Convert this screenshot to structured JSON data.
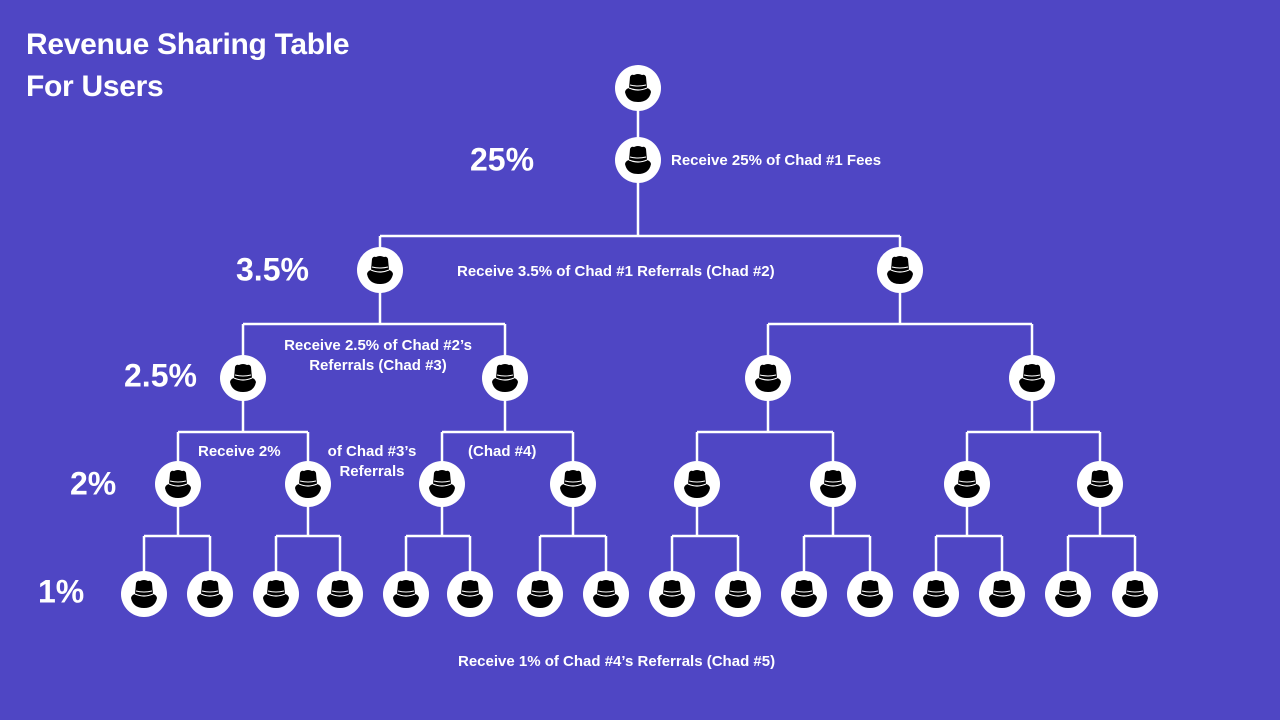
{
  "title_line1": "Revenue Sharing Table",
  "title_line2": "For Users",
  "colors": {
    "background": "#4f46c4",
    "line": "#ffffff",
    "node_fill": "#ffffff",
    "icon": "#000000"
  },
  "levels": [
    {
      "percent": "25%",
      "note": "Receive 25% of Chad #1 Fees"
    },
    {
      "percent": "3.5%",
      "note": "Receive 3.5% of Chad #1 Referrals (Chad #2)"
    },
    {
      "percent": "2.5%",
      "note_line1": "Receive 2.5% of Chad #2’s",
      "note_line2": "Referrals (Chad #3)"
    },
    {
      "percent": "2%",
      "note_part1": "Receive 2%",
      "note_part2_line1": "of Chad #3’s",
      "note_part2_line2": "Referrals",
      "note_part3": "(Chad #4)"
    },
    {
      "percent": "1%",
      "note": "Receive 1% of Chad #4’s Referrals (Chad #5)"
    }
  ],
  "node_icon": "hat-person-icon",
  "tree": {
    "root": [
      638,
      88
    ],
    "level0": [
      638,
      160
    ],
    "level1": [
      380,
      900
    ],
    "level2": [
      243,
      505,
      768,
      1032
    ],
    "level3": [
      178,
      308,
      442,
      573,
      697,
      833,
      967,
      1100
    ],
    "level4": [
      144,
      210,
      276,
      340,
      406,
      470,
      540,
      606,
      672,
      738,
      804,
      870,
      936,
      1002,
      1068,
      1135
    ],
    "y": {
      "l1": 270,
      "l2": 378,
      "l3": 484,
      "l4": 594,
      "h1": 236,
      "h2": 324,
      "h3": 432,
      "h4": 536
    }
  }
}
